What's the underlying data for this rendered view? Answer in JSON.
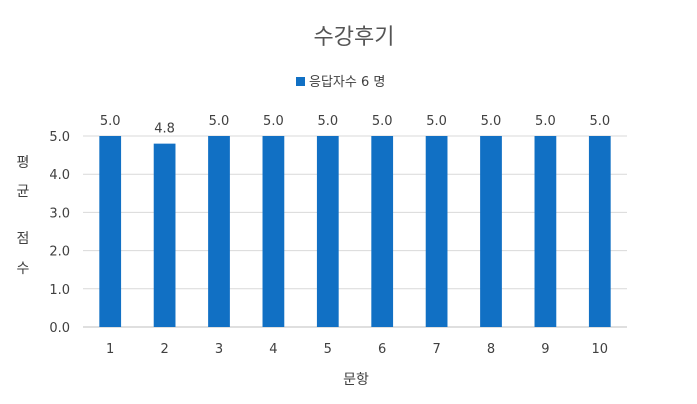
{
  "chart_data": {
    "type": "bar",
    "title": "수강후기",
    "categories": [
      "1",
      "2",
      "3",
      "4",
      "5",
      "6",
      "7",
      "8",
      "9",
      "10"
    ],
    "series": [
      {
        "name": "응답자수 6 명",
        "values": [
          5.0,
          4.8,
          5.0,
          5.0,
          5.0,
          5.0,
          5.0,
          5.0,
          5.0,
          5.0
        ]
      }
    ],
    "data_labels": [
      "5.0",
      "4.8",
      "5.0",
      "5.0",
      "5.0",
      "5.0",
      "5.0",
      "5.0",
      "5.0",
      "5.0"
    ],
    "xlabel": "문항",
    "ylabel": "평균 점수",
    "ylabel_lines": [
      "평",
      "균",
      "점",
      "수"
    ],
    "ylim": [
      0,
      5
    ],
    "yticks": [
      "0.0",
      "1.0",
      "2.0",
      "3.0",
      "4.0",
      "5.0"
    ],
    "grid": true,
    "legend_position": "top",
    "colors": {
      "bar": "#1170C4",
      "grid": "#D9D9D9",
      "axis": "#BFBFBF"
    }
  }
}
